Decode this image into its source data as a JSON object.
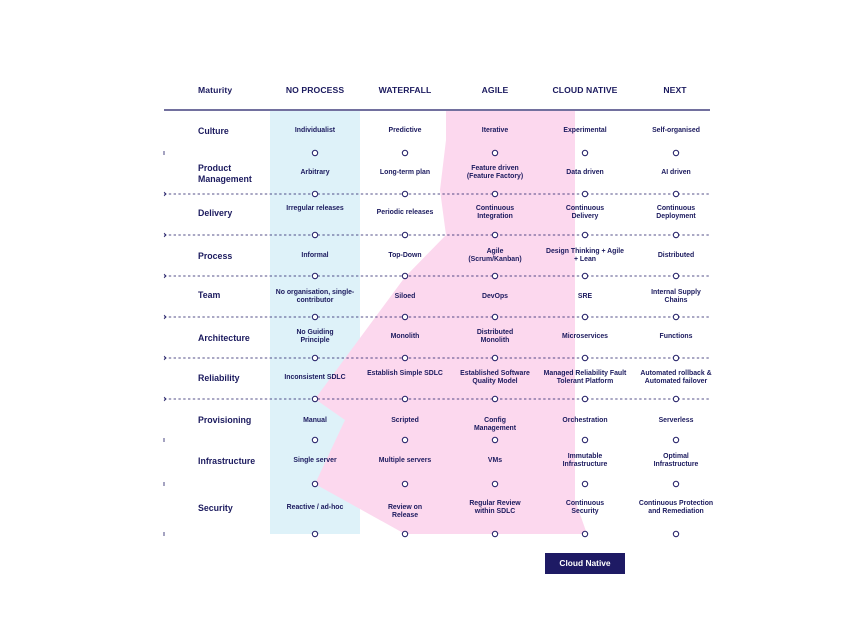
{
  "header": {
    "maturity_label": "Maturity",
    "stages": [
      "NO PROCESS",
      "WATERFALL",
      "AGILE",
      "CLOUD NATIVE",
      "NEXT"
    ]
  },
  "rows": [
    {
      "label": "Culture",
      "cells": [
        "Individualist",
        "Predictive",
        "Iterative",
        "Experimental",
        "Self-organised"
      ]
    },
    {
      "label": "Product Management",
      "cells": [
        "Arbitrary",
        "Long-term plan",
        "Feature driven (Feature Factory)",
        "Data driven",
        "AI driven"
      ]
    },
    {
      "label": "Delivery",
      "cells": [
        "Irregular releases",
        "Periodic releases",
        "Continuous Integration",
        "Continuous Delivery",
        "Continuous Deployment"
      ]
    },
    {
      "label": "Process",
      "cells": [
        "Informal",
        "Top-Down",
        "Agile (Scrum/Kanban)",
        "Design Thinking + Agile + Lean",
        "Distributed"
      ]
    },
    {
      "label": "Team",
      "cells": [
        "No organisation, single-contributor",
        "Siloed",
        "DevOps",
        "SRE",
        "Internal Supply Chains"
      ]
    },
    {
      "label": "Architecture",
      "cells": [
        "No Guiding Principle",
        "Monolith",
        "Distributed Monolith",
        "Microservices",
        "Functions"
      ]
    },
    {
      "label": "Reliability",
      "cells": [
        "Inconsistent SDLC",
        "Establish Simple SDLC",
        "Established Software Quality Model",
        "Managed Reliability Fault Tolerant Platform",
        "Automated rollback & Automated failover"
      ]
    },
    {
      "label": "Provisioning",
      "cells": [
        "Manual",
        "Scripted",
        "Config Management",
        "Orchestration",
        "Serverless"
      ]
    },
    {
      "label": "Infrastructure",
      "cells": [
        "Single server",
        "Multiple servers",
        "VMs",
        "Immutable Infrastructure",
        "Optimal Infrastructure"
      ]
    },
    {
      "label": "Security",
      "cells": [
        "Reactive / ad-hoc",
        "Review on Release",
        "Regular Review within SDLC",
        "Continuous Security",
        "Continuous Protection and Remediation"
      ]
    }
  ],
  "profile_levels": [
    4,
    4,
    4,
    3,
    3,
    3,
    1,
    1,
    1,
    4
  ],
  "legend": {
    "badge_label": "Cloud Native"
  },
  "colors": {
    "navy": "#1e1a64",
    "baseline_fill": "#def2f9",
    "profile_fill": "#fcd8ee"
  }
}
